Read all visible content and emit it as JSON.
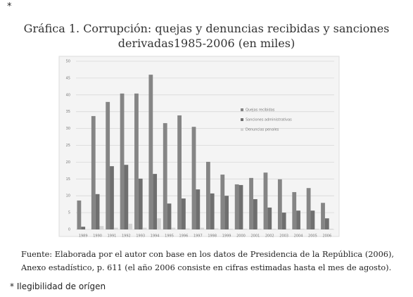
{
  "marker": "*",
  "chart_data": {
    "type": "bar",
    "title": "Gráfica 1. Corrupción: quejas y denuncias recibidas y sanciones derivadas1985-2006 (en miles)",
    "categories": [
      "1989",
      "1990",
      "1991",
      "1992",
      "1993",
      "1994",
      "1995",
      "1996",
      "1997",
      "1998",
      "1999",
      "2000",
      "2001",
      "2002",
      "2003",
      "2004",
      "2005",
      "2006"
    ],
    "series": [
      {
        "name": "Quejas recibidas",
        "color": "#858585",
        "values": [
          8.6,
          33.7,
          37.9,
          40.4,
          40.4,
          46.0,
          31.6,
          33.9,
          30.5,
          20.1,
          16.3,
          13.4,
          15.3,
          16.9,
          14.9,
          11.1,
          12.3,
          7.9
        ]
      },
      {
        "name": "Sanciones administrativas",
        "color": "#6f6f6f",
        "values": [
          0.8,
          10.5,
          18.8,
          19.2,
          15.1,
          16.5,
          7.7,
          9.2,
          11.9,
          10.7,
          10.0,
          13.2,
          9.0,
          6.5,
          5.0,
          5.6,
          5.6,
          3.3
        ]
      },
      {
        "name": "Denuncias penales",
        "color": "#d4d4d4",
        "values": [
          0,
          1.0,
          0.5,
          1.7,
          0.5,
          3.3,
          0.5,
          0.3,
          0.5,
          0.3,
          0.2,
          0.2,
          0.2,
          0.2,
          0.2,
          0.2,
          0.2,
          0.2
        ]
      }
    ],
    "ylim": [
      0,
      50
    ],
    "yticks": [
      0,
      5,
      10,
      15,
      20,
      25,
      30,
      35,
      40,
      45,
      50
    ],
    "grid": true,
    "legend": "right"
  },
  "source": "Fuente: Elaborada por el autor con base en los datos de Presidencia de la República (2006), Anexo estadístico, p. 611 (el año 2006 consiste en cifras estimadas hasta el mes de agosto).",
  "footnote": "* Ilegibilidad de orígen"
}
